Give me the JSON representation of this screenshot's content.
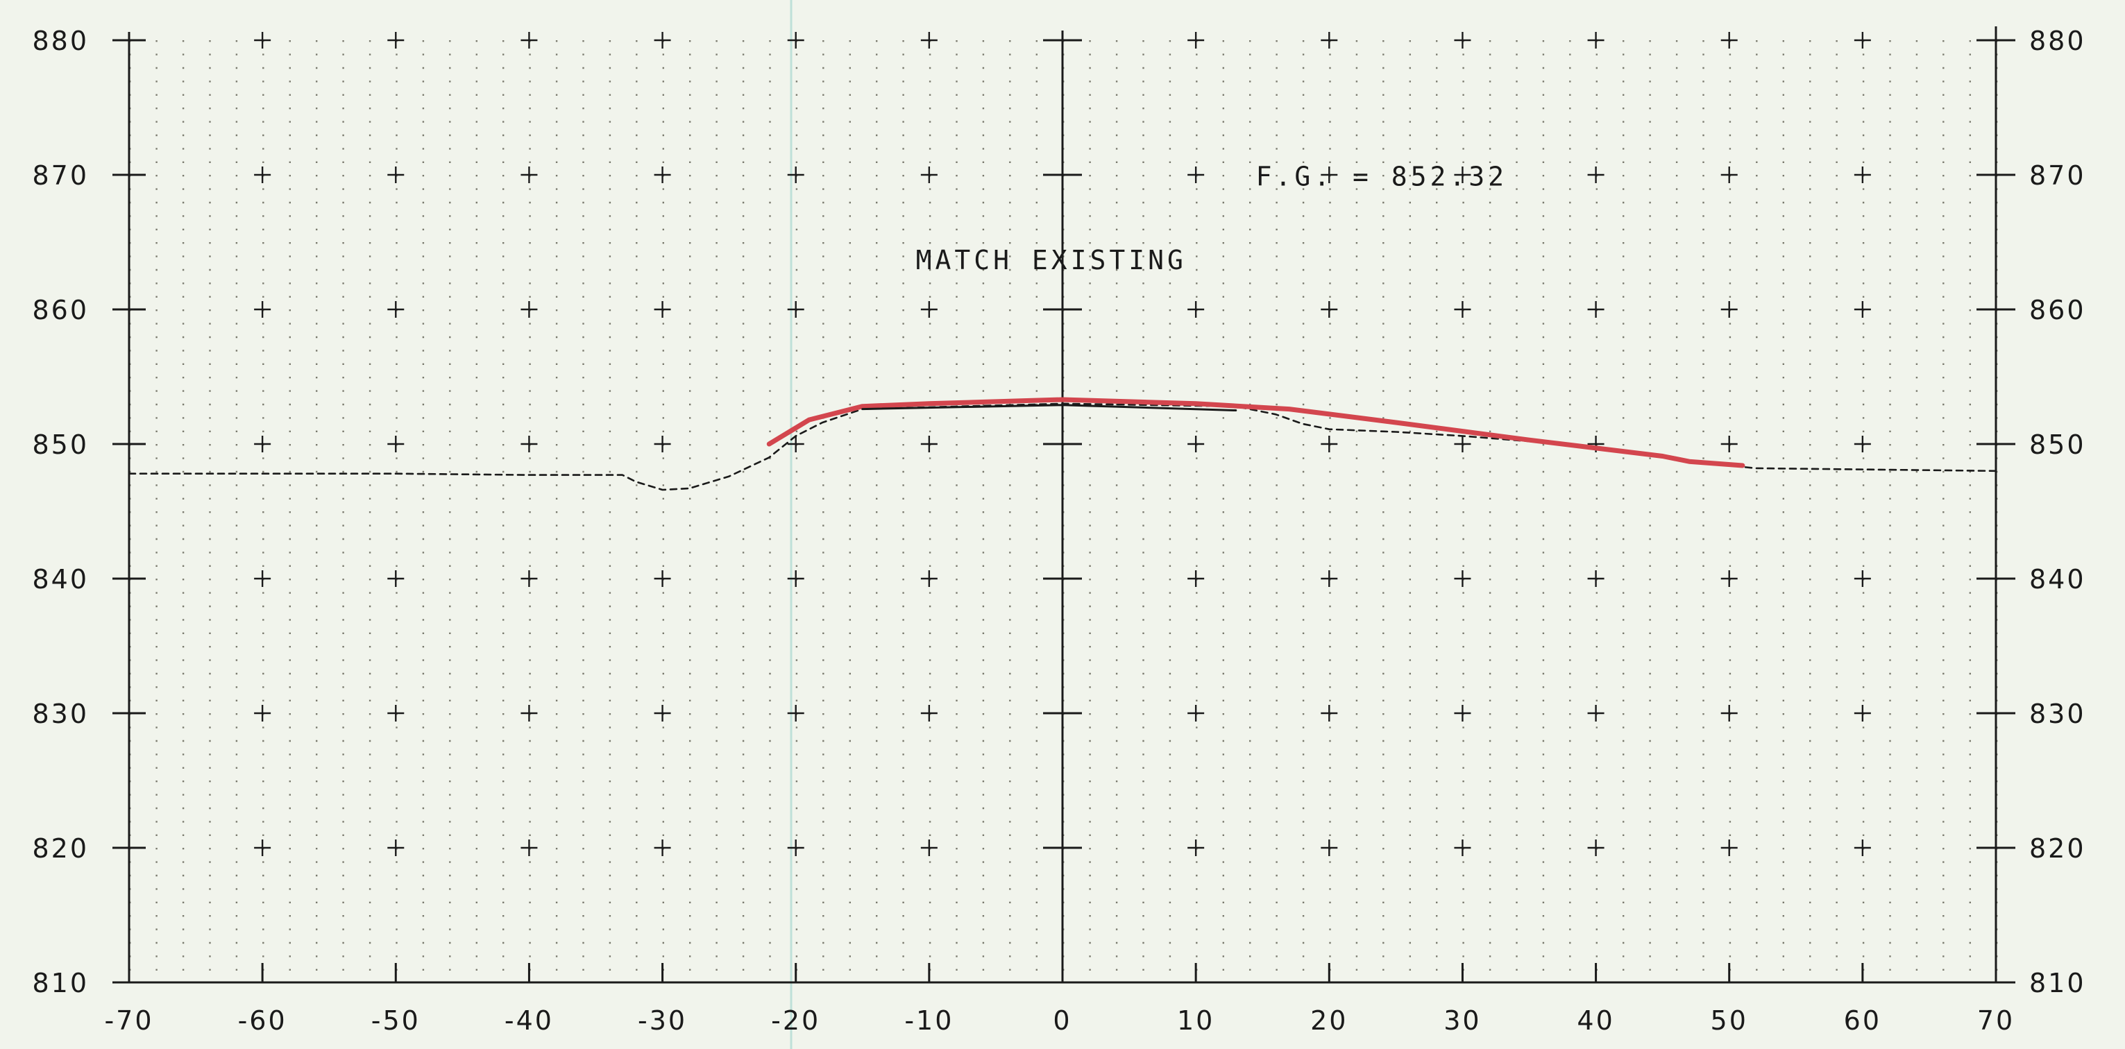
{
  "chart_data": {
    "type": "line",
    "title": "",
    "xlabel": "",
    "ylabel": "",
    "xlim": [
      -70,
      70
    ],
    "ylim": [
      810,
      880
    ],
    "grid": true,
    "x_ticks": [
      "-70",
      "-60",
      "-50",
      "-40",
      "-30",
      "-20",
      "-10",
      "0",
      "10",
      "20",
      "30",
      "40",
      "50",
      "60",
      "70"
    ],
    "y_ticks": [
      "810",
      "820",
      "830",
      "840",
      "850",
      "860",
      "870",
      "880"
    ],
    "annotations": [
      {
        "text": "F.G. = 852.32",
        "x": 14.5,
        "y": 869.2
      },
      {
        "text": "MATCH EXISTING",
        "x": -11,
        "y": 863
      }
    ],
    "series": [
      {
        "style": "dashed",
        "color": "#1a1a1a",
        "x": [
          -70,
          -50,
          -40,
          -33,
          -32,
          -30,
          -28,
          -25,
          -22,
          -20,
          -18,
          -15,
          0,
          13,
          16,
          18,
          20,
          25,
          30,
          35,
          40,
          45,
          48,
          52,
          70
        ],
        "y": [
          847.8,
          847.8,
          847.7,
          847.7,
          847.2,
          846.6,
          846.7,
          847.6,
          849.0,
          850.6,
          851.6,
          852.6,
          853.0,
          852.8,
          852.2,
          851.5,
          851.1,
          850.9,
          850.6,
          850.2,
          849.7,
          849.2,
          848.6,
          848.2,
          848.0
        ]
      },
      {
        "style": "solid",
        "color": "#d3464e",
        "x": [
          -22,
          -19,
          -15,
          -10,
          0,
          10,
          17,
          25,
          35,
          45,
          47,
          51
        ],
        "y": [
          850.0,
          851.8,
          852.8,
          853.0,
          853.3,
          853.0,
          852.6,
          851.6,
          850.3,
          849.1,
          848.7,
          848.4
        ]
      },
      {
        "style": "solid",
        "color": "#1a1a1a",
        "x": [
          -15,
          0,
          13
        ],
        "y": [
          852.6,
          852.9,
          852.5
        ]
      }
    ]
  }
}
